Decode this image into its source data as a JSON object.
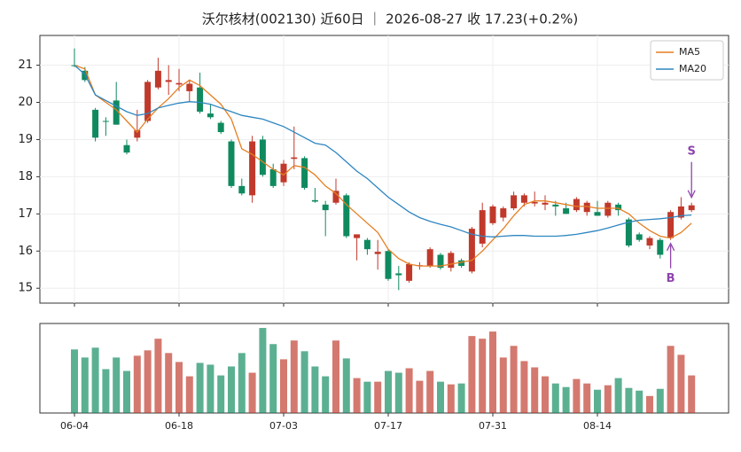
{
  "chart_data": {
    "type": "candlestick",
    "title": "沃尔核材(002130) 近60日 ｜ 2026-08-27 收 17.23(+0.2%)",
    "categories": [
      "06-04",
      null,
      null,
      null,
      null,
      null,
      null,
      null,
      null,
      null,
      "06-18",
      null,
      null,
      null,
      null,
      null,
      null,
      null,
      null,
      null,
      "07-03",
      null,
      null,
      null,
      null,
      null,
      null,
      null,
      null,
      null,
      "07-17",
      null,
      null,
      null,
      null,
      null,
      null,
      null,
      null,
      null,
      "07-31",
      null,
      null,
      null,
      null,
      null,
      null,
      null,
      null,
      null,
      "08-14",
      null,
      null,
      null,
      null,
      null,
      null,
      null,
      null,
      null
    ],
    "open": [
      21.0,
      20.85,
      19.8,
      19.5,
      20.05,
      18.85,
      19.05,
      19.5,
      20.4,
      20.55,
      20.48,
      20.3,
      20.4,
      19.7,
      19.45,
      18.95,
      17.75,
      17.5,
      19.0,
      18.2,
      17.85,
      18.48,
      18.5,
      17.37,
      17.25,
      17.3,
      17.5,
      16.35,
      16.3,
      15.92,
      16.0,
      15.4,
      15.2,
      15.6,
      15.6,
      15.9,
      15.55,
      15.75,
      15.45,
      16.2,
      16.75,
      16.9,
      17.15,
      17.3,
      17.28,
      17.25,
      17.25,
      17.15,
      17.1,
      17.05,
      17.05,
      16.95,
      17.25,
      16.85,
      16.45,
      16.15,
      16.3,
      16.35,
      16.9,
      17.1
    ],
    "high": [
      21.45,
      20.95,
      19.85,
      19.6,
      20.55,
      19.0,
      19.8,
      20.6,
      21.2,
      21.0,
      20.9,
      20.6,
      20.8,
      19.95,
      19.5,
      19.0,
      17.95,
      19.1,
      19.1,
      18.35,
      18.45,
      19.35,
      18.55,
      17.7,
      17.35,
      17.95,
      17.55,
      16.45,
      16.35,
      16.3,
      16.05,
      15.6,
      15.7,
      15.7,
      16.1,
      15.95,
      16.0,
      15.8,
      16.65,
      17.3,
      17.25,
      17.2,
      17.6,
      17.55,
      17.6,
      17.5,
      17.35,
      17.3,
      17.45,
      17.35,
      17.35,
      17.35,
      17.3,
      16.9,
      16.5,
      16.4,
      16.35,
      17.1,
      17.45,
      17.3
    ],
    "low": [
      20.95,
      20.55,
      18.95,
      19.1,
      19.4,
      18.6,
      18.95,
      19.45,
      20.35,
      20.2,
      20.3,
      20.0,
      19.7,
      19.55,
      19.15,
      17.7,
      17.5,
      17.3,
      18.0,
      17.7,
      17.75,
      18.2,
      17.65,
      17.3,
      16.4,
      17.25,
      16.35,
      15.75,
      15.9,
      15.5,
      15.2,
      14.95,
      15.15,
      15.5,
      15.55,
      15.5,
      15.45,
      15.55,
      15.4,
      16.1,
      16.7,
      16.8,
      17.1,
      17.2,
      17.2,
      17.1,
      16.95,
      17.0,
      17.05,
      16.95,
      16.95,
      16.9,
      16.95,
      16.1,
      16.25,
      16.05,
      15.8,
      16.3,
      16.85,
      17.05
    ],
    "close": [
      20.98,
      20.6,
      19.05,
      19.48,
      19.4,
      18.65,
      19.25,
      20.55,
      20.85,
      20.6,
      20.52,
      20.5,
      19.75,
      19.6,
      19.2,
      17.75,
      17.55,
      18.95,
      18.05,
      17.75,
      18.35,
      18.52,
      17.7,
      17.33,
      17.1,
      17.62,
      16.4,
      16.45,
      16.05,
      15.98,
      15.25,
      15.35,
      15.65,
      15.62,
      16.05,
      15.55,
      15.95,
      15.6,
      16.6,
      17.1,
      17.2,
      17.15,
      17.5,
      17.5,
      17.32,
      17.3,
      17.2,
      17.0,
      17.4,
      17.3,
      16.95,
      17.3,
      17.1,
      16.15,
      16.3,
      16.35,
      15.9,
      17.05,
      17.2,
      17.23
    ],
    "volume": [
      71,
      62,
      73,
      49,
      62,
      47,
      64,
      70,
      83,
      67,
      57,
      41,
      56,
      54,
      42,
      52,
      67,
      45,
      95,
      77,
      60,
      81,
      69,
      52,
      41,
      81,
      61,
      39,
      35,
      35,
      47,
      45,
      50,
      36,
      47,
      35,
      32,
      33,
      86,
      83,
      91,
      62,
      75,
      58,
      51,
      41,
      33,
      29,
      38,
      33,
      26,
      31,
      39,
      28,
      25,
      19,
      27,
      75,
      65,
      42
    ],
    "up_color": "#c0392b",
    "down_color": "#0f8a5f",
    "series": [
      {
        "name": "MA5",
        "color": "#e67e22",
        "values": [
          21.0,
          20.9,
          20.2,
          20.0,
          19.8,
          19.5,
          19.2,
          19.55,
          19.85,
          20.1,
          20.4,
          20.6,
          20.45,
          20.2,
          19.95,
          19.55,
          18.75,
          18.6,
          18.4,
          18.2,
          18.05,
          18.3,
          18.25,
          18.05,
          17.75,
          17.55,
          17.25,
          17.0,
          16.75,
          16.5,
          16.05,
          15.8,
          15.65,
          15.6,
          15.6,
          15.6,
          15.65,
          15.7,
          15.75,
          16.0,
          16.3,
          16.6,
          16.95,
          17.25,
          17.35,
          17.35,
          17.3,
          17.25,
          17.2,
          17.2,
          17.15,
          17.15,
          17.15,
          17.0,
          16.75,
          16.55,
          16.4,
          16.35,
          16.5,
          16.75
        ]
      },
      {
        "name": "MA20",
        "color": "#2e86c1",
        "values": [
          21.0,
          20.75,
          20.2,
          20.05,
          19.9,
          19.75,
          19.65,
          19.7,
          19.85,
          19.92,
          19.98,
          20.02,
          20.0,
          19.95,
          19.85,
          19.75,
          19.65,
          19.6,
          19.55,
          19.45,
          19.35,
          19.2,
          19.05,
          18.9,
          18.85,
          18.65,
          18.4,
          18.15,
          17.95,
          17.7,
          17.45,
          17.25,
          17.05,
          16.9,
          16.8,
          16.72,
          16.65,
          16.55,
          16.45,
          16.4,
          16.38,
          16.4,
          16.42,
          16.42,
          16.4,
          16.4,
          16.4,
          16.42,
          16.45,
          16.5,
          16.55,
          16.62,
          16.7,
          16.78,
          16.83,
          16.85,
          16.87,
          16.9,
          16.95,
          16.97
        ]
      }
    ],
    "annotations": [
      {
        "text": "S",
        "index": 59,
        "color": "#8e44ad"
      },
      {
        "text": "B",
        "index": 57,
        "color": "#8e44ad"
      }
    ],
    "ylim": [
      14.6,
      21.8
    ],
    "yticks": [
      15,
      16,
      17,
      18,
      19,
      20,
      21
    ],
    "volume_ylim": [
      0,
      100
    ],
    "grid": true,
    "legend": "upper right"
  }
}
